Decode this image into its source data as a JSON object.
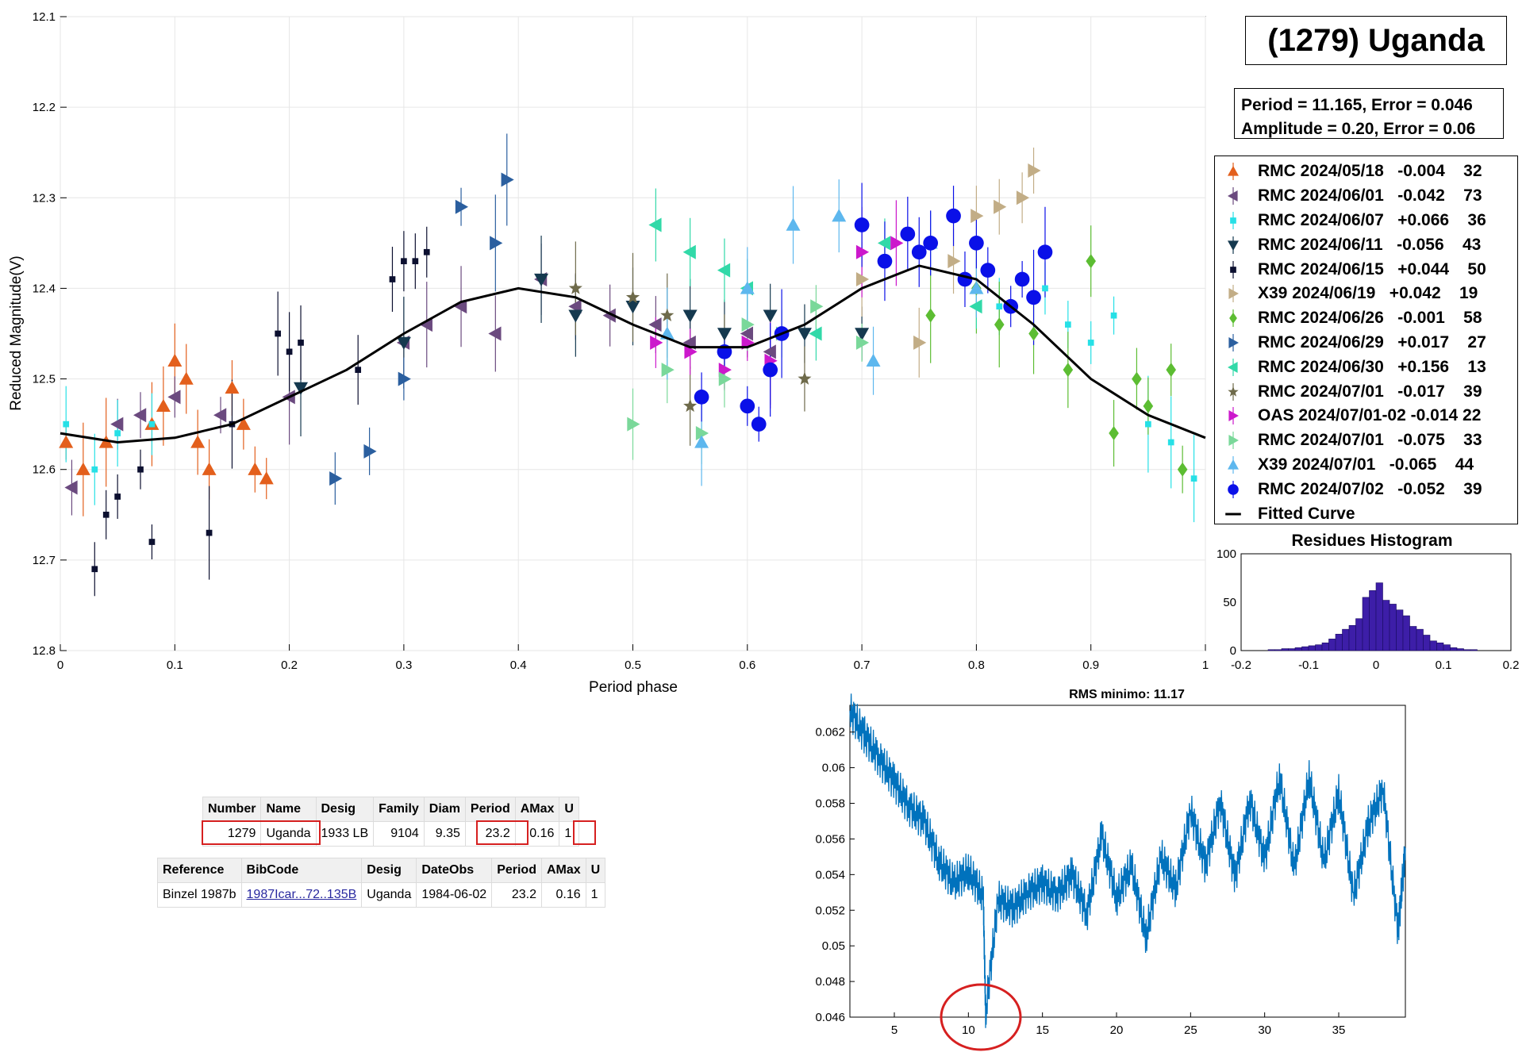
{
  "title": "(1279) Uganda",
  "info": {
    "line1": "Period =  11.165, Error = 0.046",
    "line2": "Amplitude = 0.20, Error = 0.06"
  },
  "legend": [
    {
      "label": "RMC 2024/05/18   -0.004    32",
      "color": "#e35f1c",
      "marker": "triangle-up"
    },
    {
      "label": "RMC 2024/06/01   -0.042    73",
      "color": "#6b4a7f",
      "marker": "triangle-left"
    },
    {
      "label": "RMC 2024/06/07   +0.066    36",
      "color": "#26e0e6",
      "marker": "square"
    },
    {
      "label": "RMC 2024/06/11   -0.056    43",
      "color": "#15394f",
      "marker": "triangle-down"
    },
    {
      "label": "RMC 2024/06/15   +0.044    50",
      "color": "#0c1030",
      "marker": "square"
    },
    {
      "label": "X39 2024/06/19   +0.042    19",
      "color": "#c2ad86",
      "marker": "triangle-right"
    },
    {
      "label": "RMC 2024/06/26   -0.001    58",
      "color": "#5cbd32",
      "marker": "diamond"
    },
    {
      "label": "RMC 2024/06/29   +0.017    27",
      "color": "#2b5f9f",
      "marker": "triangle-right"
    },
    {
      "label": "RMC 2024/06/30   +0.156    13",
      "color": "#31d9a8",
      "marker": "triangle-left"
    },
    {
      "label": "RMC 2024/07/01   -0.017    39",
      "color": "#6e6a4a",
      "marker": "star"
    },
    {
      "label": "OAS 2024/07/01-02 -0.014 22",
      "color": "#cc18cc",
      "marker": "triangle-right"
    },
    {
      "label": "RMC 2024/07/01   -0.075    33",
      "color": "#7ad89a",
      "marker": "triangle-right"
    },
    {
      "label": "X39 2024/07/01   -0.065    44",
      "color": "#5db7ee",
      "marker": "triangle-up"
    },
    {
      "label": "RMC 2024/07/02   -0.052    39",
      "color": "#0a10e8",
      "marker": "circle"
    },
    {
      "label": "Fitted Curve",
      "color": "#000000",
      "marker": "line"
    }
  ],
  "chart_data": [
    {
      "type": "scatter",
      "xlabel": "Period phase",
      "ylabel": "Reduced Magnitude(V)",
      "xlim": [
        0,
        1
      ],
      "ylim": [
        12.1,
        12.8
      ],
      "y_reversed": true,
      "grid": true,
      "xticks": [
        "0",
        "0.1",
        "0.2",
        "0.3",
        "0.4",
        "0.5",
        "0.6",
        "0.7",
        "0.8",
        "0.9",
        "1"
      ],
      "yticks": [
        "12.1",
        "12.2",
        "12.3",
        "12.4",
        "12.5",
        "12.6",
        "12.7",
        "12.8"
      ],
      "fitted_curve": {
        "name": "Fitted Curve",
        "x": [
          0,
          0.05,
          0.1,
          0.15,
          0.2,
          0.25,
          0.3,
          0.35,
          0.4,
          0.45,
          0.5,
          0.55,
          0.6,
          0.65,
          0.7,
          0.75,
          0.8,
          0.85,
          0.9,
          0.95,
          1.0
        ],
        "y": [
          12.56,
          12.57,
          12.565,
          12.55,
          12.52,
          12.49,
          12.45,
          12.415,
          12.4,
          12.41,
          12.44,
          12.465,
          12.465,
          12.44,
          12.4,
          12.375,
          12.39,
          12.44,
          12.5,
          12.54,
          12.565
        ]
      },
      "series": [
        {
          "name": "RMC 2024/05/18",
          "x": [
            0.005,
            0.02,
            0.04,
            0.08,
            0.09,
            0.1,
            0.11,
            0.12,
            0.13,
            0.15,
            0.16,
            0.17,
            0.18
          ],
          "y": [
            12.57,
            12.6,
            12.57,
            12.55,
            12.53,
            12.48,
            12.5,
            12.57,
            12.6,
            12.51,
            12.55,
            12.6,
            12.61
          ]
        },
        {
          "name": "RMC 2024/06/01",
          "x": [
            0.01,
            0.05,
            0.07,
            0.1,
            0.14,
            0.2,
            0.3,
            0.32,
            0.35,
            0.38,
            0.42,
            0.45,
            0.48,
            0.52,
            0.55,
            0.6,
            0.62
          ],
          "y": [
            12.62,
            12.55,
            12.54,
            12.52,
            12.54,
            12.52,
            12.46,
            12.44,
            12.42,
            12.45,
            12.39,
            12.42,
            12.43,
            12.44,
            12.46,
            12.45,
            12.47
          ]
        },
        {
          "name": "RMC 2024/06/07",
          "x": [
            0.005,
            0.03,
            0.05,
            0.08,
            0.82,
            0.86,
            0.88,
            0.9,
            0.92,
            0.95,
            0.97,
            0.99
          ],
          "y": [
            12.55,
            12.6,
            12.56,
            12.55,
            12.42,
            12.4,
            12.44,
            12.46,
            12.43,
            12.55,
            12.57,
            12.61
          ]
        },
        {
          "name": "RMC 2024/06/11",
          "x": [
            0.21,
            0.3,
            0.42,
            0.45,
            0.5,
            0.55,
            0.58,
            0.62,
            0.65,
            0.7
          ],
          "y": [
            12.51,
            12.46,
            12.39,
            12.43,
            12.42,
            12.43,
            12.45,
            12.43,
            12.45,
            12.45
          ]
        },
        {
          "name": "RMC 2024/06/15",
          "x": [
            0.03,
            0.04,
            0.05,
            0.07,
            0.08,
            0.13,
            0.15,
            0.19,
            0.2,
            0.21,
            0.26,
            0.29,
            0.3,
            0.31,
            0.32
          ],
          "y": [
            12.71,
            12.65,
            12.63,
            12.6,
            12.68,
            12.67,
            12.55,
            12.45,
            12.47,
            12.46,
            12.49,
            12.39,
            12.37,
            12.37,
            12.36
          ]
        },
        {
          "name": "X39 2024/06/19",
          "x": [
            0.7,
            0.75,
            0.78,
            0.8,
            0.82,
            0.84,
            0.85
          ],
          "y": [
            12.39,
            12.46,
            12.37,
            12.32,
            12.31,
            12.3,
            12.27
          ]
        },
        {
          "name": "RMC 2024/06/26",
          "x": [
            0.76,
            0.8,
            0.82,
            0.85,
            0.88,
            0.9,
            0.92,
            0.94,
            0.95,
            0.97,
            0.98
          ],
          "y": [
            12.43,
            12.4,
            12.44,
            12.45,
            12.49,
            12.37,
            12.56,
            12.5,
            12.53,
            12.49,
            12.6
          ]
        },
        {
          "name": "RMC 2024/06/29",
          "x": [
            0.24,
            0.27,
            0.3,
            0.35,
            0.38,
            0.39
          ],
          "y": [
            12.61,
            12.58,
            12.5,
            12.31,
            12.35,
            12.28
          ]
        },
        {
          "name": "RMC 2024/06/30",
          "x": [
            0.52,
            0.55,
            0.58,
            0.6,
            0.66,
            0.72,
            0.8
          ],
          "y": [
            12.33,
            12.36,
            12.38,
            12.4,
            12.45,
            12.35,
            12.42
          ]
        },
        {
          "name": "RMC 2024/07/01 (star)",
          "x": [
            0.45,
            0.5,
            0.53,
            0.55,
            0.58,
            0.62,
            0.65
          ],
          "y": [
            12.4,
            12.41,
            12.43,
            12.53,
            12.47,
            12.49,
            12.5
          ]
        },
        {
          "name": "OAS 2024/07/01-02",
          "x": [
            0.52,
            0.55,
            0.58,
            0.6,
            0.62,
            0.7,
            0.73
          ],
          "y": [
            12.46,
            12.47,
            12.49,
            12.46,
            12.48,
            12.36,
            12.35
          ]
        },
        {
          "name": "RMC 2024/07/01",
          "x": [
            0.5,
            0.53,
            0.56,
            0.58,
            0.6,
            0.63,
            0.66,
            0.7
          ],
          "y": [
            12.55,
            12.49,
            12.56,
            12.5,
            12.44,
            12.45,
            12.42,
            12.46
          ]
        },
        {
          "name": "X39 2024/07/01",
          "x": [
            0.53,
            0.56,
            0.6,
            0.64,
            0.68,
            0.71,
            0.76,
            0.8
          ],
          "y": [
            12.45,
            12.57,
            12.4,
            12.33,
            12.32,
            12.48,
            12.35,
            12.4
          ]
        },
        {
          "name": "RMC 2024/07/02",
          "x": [
            0.56,
            0.58,
            0.6,
            0.61,
            0.62,
            0.63,
            0.7,
            0.72,
            0.74,
            0.75,
            0.76,
            0.78,
            0.79,
            0.8,
            0.81,
            0.83,
            0.84,
            0.85,
            0.86
          ],
          "y": [
            12.52,
            12.47,
            12.53,
            12.55,
            12.49,
            12.45,
            12.33,
            12.37,
            12.34,
            12.36,
            12.35,
            12.32,
            12.39,
            12.35,
            12.38,
            12.42,
            12.39,
            12.41,
            12.36
          ]
        }
      ]
    },
    {
      "type": "bar",
      "title": "Residues Histogram",
      "xlim": [
        -0.2,
        0.2
      ],
      "ylim": [
        0,
        100
      ],
      "xticks": [
        "-0.2",
        "-0.1",
        "0",
        "0.1",
        "0.2"
      ],
      "yticks": [
        "0",
        "50",
        "100"
      ],
      "x": [
        -0.155,
        -0.145,
        -0.135,
        -0.125,
        -0.115,
        -0.105,
        -0.095,
        -0.085,
        -0.075,
        -0.065,
        -0.055,
        -0.045,
        -0.035,
        -0.025,
        -0.015,
        -0.005,
        0.005,
        0.015,
        0.025,
        0.035,
        0.045,
        0.055,
        0.065,
        0.075,
        0.085,
        0.095,
        0.105,
        0.115,
        0.125,
        0.135,
        0.145
      ],
      "values": [
        1,
        1,
        2,
        2,
        3,
        4,
        5,
        6,
        8,
        12,
        17,
        22,
        26,
        33,
        55,
        62,
        70,
        52,
        48,
        42,
        36,
        25,
        22,
        16,
        10,
        8,
        6,
        3,
        2,
        1,
        1
      ]
    },
    {
      "type": "line",
      "title": "RMS minimo: 11.17",
      "xlim": [
        2,
        39.5
      ],
      "ylim": [
        0.046,
        0.0635
      ],
      "xticks": [
        "5",
        "10",
        "15",
        "20",
        "25",
        "30",
        "35"
      ],
      "yticks": [
        "0.046",
        "0.048",
        "0.05",
        "0.052",
        "0.054",
        "0.056",
        "0.058",
        "0.06",
        "0.062"
      ],
      "x": [
        2,
        3,
        4,
        5,
        6,
        7,
        8,
        9,
        10,
        11,
        11.165,
        12,
        13,
        14,
        15,
        16,
        17,
        18,
        19,
        20,
        21,
        22,
        23,
        24,
        25,
        26,
        27,
        28,
        29,
        30,
        31,
        32,
        33,
        34,
        35,
        36,
        37,
        38,
        39,
        39.5
      ],
      "y": [
        0.0632,
        0.0618,
        0.0605,
        0.0592,
        0.0578,
        0.057,
        0.0548,
        0.0535,
        0.0542,
        0.0528,
        0.0462,
        0.0526,
        0.0521,
        0.053,
        0.0535,
        0.0529,
        0.054,
        0.0518,
        0.0562,
        0.0527,
        0.0545,
        0.0505,
        0.055,
        0.0532,
        0.0576,
        0.0545,
        0.0581,
        0.0538,
        0.0582,
        0.0548,
        0.0595,
        0.0543,
        0.0595,
        0.0547,
        0.0586,
        0.0528,
        0.0568,
        0.0588,
        0.0508,
        0.0555
      ]
    }
  ],
  "table1": {
    "headers": [
      "Number",
      "Name",
      "Desig",
      "Family",
      "Diam",
      "Period",
      "AMax",
      "U"
    ],
    "row": [
      "1279",
      "Uganda",
      "1933 LB",
      "9104",
      "9.35",
      "23.2",
      "0.16",
      "1"
    ]
  },
  "table2": {
    "headers": [
      "Reference",
      "BibCode",
      "Desig",
      "DateObs",
      "Period",
      "AMax",
      "U"
    ],
    "row": [
      "Binzel 1987b",
      "1987Icar...72..135B",
      "Uganda",
      "1984-06-02",
      "23.2",
      "0.16",
      "1"
    ]
  },
  "colors": {
    "fit": "#000000",
    "rms_line": "#0072bd",
    "histogram_bar": "#3d1ea8",
    "highlight": "#d62020"
  }
}
